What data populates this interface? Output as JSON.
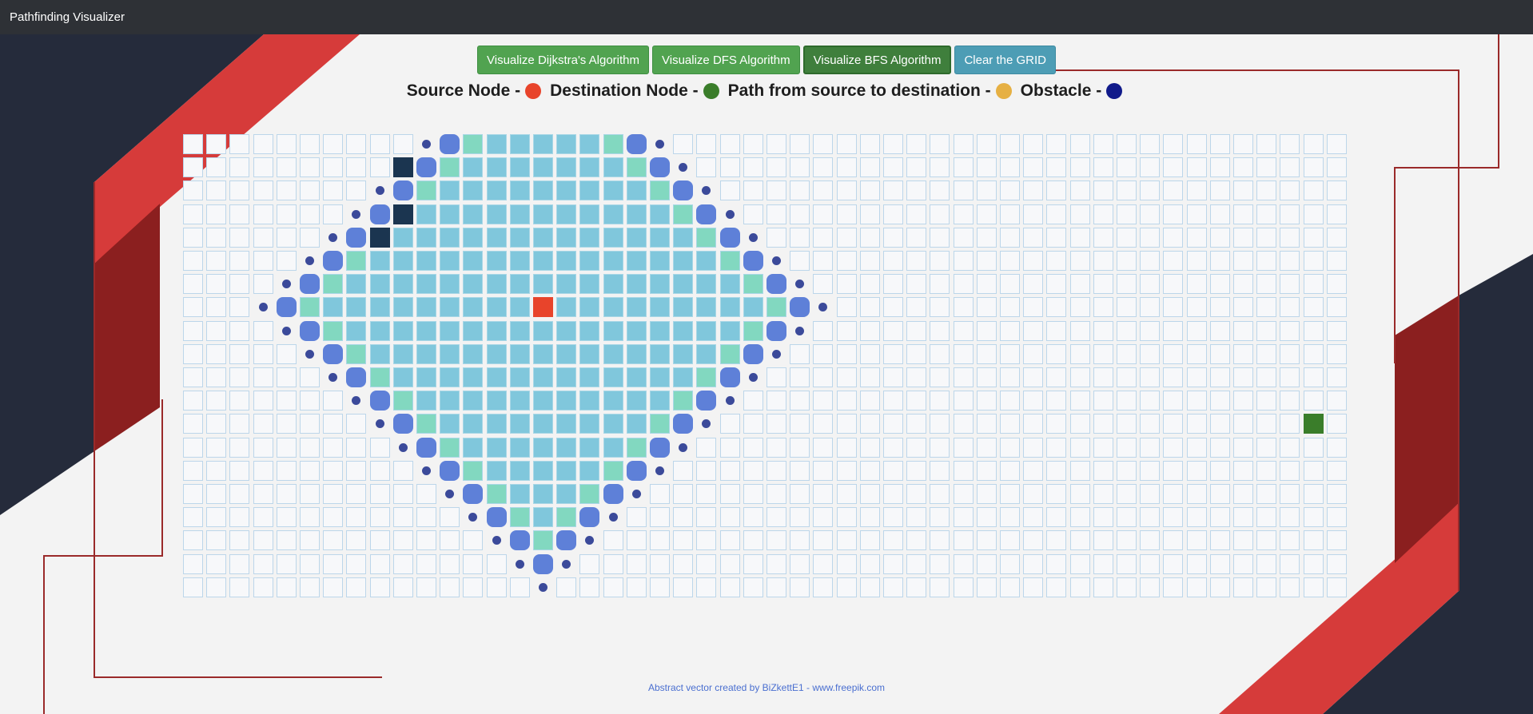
{
  "window": {
    "title": "Pathfinding Visualizer"
  },
  "toolbar": {
    "dijkstra_label": "Visualize Dijkstra's Algorithm",
    "dfs_label": "Visualize DFS Algorithm",
    "bfs_label": "Visualize BFS Algorithm",
    "clear_label": "Clear the GRID"
  },
  "legend": {
    "source_label": "Source Node -",
    "destination_label": "Destination Node -",
    "path_label": "Path from source to destination -",
    "obstacle_label": "Obstacle -"
  },
  "colors": {
    "source": "#e8442b",
    "destination": "#3a7d2a",
    "path": "#e6b043",
    "obstacle": "#101a8a",
    "visited": "#80c7dc",
    "frontier": "#82d8c0",
    "frontier_dot": "#5e80d8",
    "wall": "#1b3550",
    "empty": "#f7f8fa"
  },
  "grid": {
    "rows": 20,
    "cols": 50,
    "source": [
      7,
      15
    ],
    "destination": [
      12,
      48
    ],
    "walls": [
      [
        1,
        9
      ],
      [
        3,
        9
      ],
      [
        4,
        8
      ]
    ],
    "bfs_max_radius": 12
  },
  "footer": {
    "credit": "Abstract vector created by BiZkettE1 - www.freepik.com"
  }
}
